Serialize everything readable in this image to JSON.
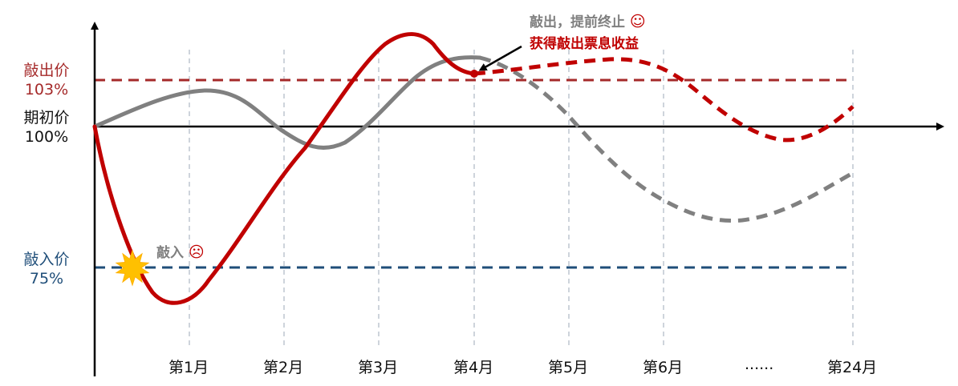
{
  "y_levels": {
    "knock_out": {
      "name": "敲出价",
      "pct": "103%",
      "value": 103,
      "color": "#a52a2a"
    },
    "initial": {
      "name": "期初价",
      "pct": "100%",
      "value": 100,
      "color": "#111111"
    },
    "knock_in": {
      "name": "敲入价",
      "pct": "75%",
      "value": 75,
      "color": "#1f4e79"
    }
  },
  "x_ticks": [
    "第1月",
    "第2月",
    "第3月",
    "第4月",
    "第5月",
    "第6月",
    "......",
    "第24月"
  ],
  "annotations": {
    "knock_out_line1": "敲出，提前终止",
    "knock_out_line2": "获得敲出票息收益",
    "knock_out_face": "☺",
    "knock_in_text": "敲入",
    "knock_in_face": "☹"
  },
  "colors": {
    "red_path": "#c00000",
    "grey_path": "#808080",
    "knock_in_line": "#1f4e79",
    "knock_out_line": "#a52a2a",
    "star": "#ffc000",
    "gridline": "#b4bcc8",
    "annotation_grey": "#7f7f7f",
    "annotation_red": "#c00000"
  }
}
